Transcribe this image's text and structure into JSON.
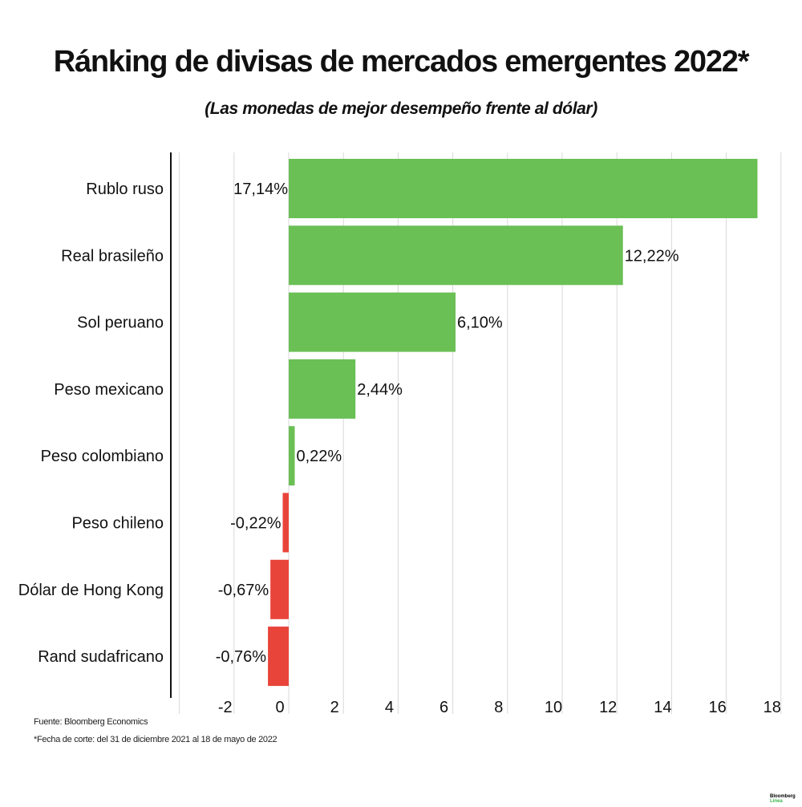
{
  "chart_data": {
    "type": "bar",
    "orientation": "horizontal",
    "title": "Ránking de divisas de mercados emergentes 2022*",
    "subtitle": "(Las monedas de mejor desempeño frente al dólar)",
    "categories": [
      "Rublo ruso",
      "Real brasileño",
      "Sol peruano",
      "Peso mexicano",
      "Peso colombiano",
      "Peso chileno",
      "Dólar de Hong Kong",
      "Rand sudafricano"
    ],
    "values": [
      17.14,
      12.22,
      6.1,
      2.44,
      0.22,
      -0.22,
      -0.67,
      -0.76
    ],
    "data_labels": [
      "17,14%",
      "12,22%",
      "6,10%",
      "2,44%",
      "0,22%",
      "-0,22%",
      "-0,67%",
      "-0,76%"
    ],
    "xlim": [
      -4,
      18.5
    ],
    "x_ticks": [
      -2,
      0,
      2,
      4,
      6,
      8,
      10,
      12,
      14,
      16,
      18
    ],
    "grid": true,
    "colors": {
      "positive": "#6abf55",
      "negative": "#e8443a"
    }
  },
  "footer": {
    "source": "Fuente: Bloomberg Economics",
    "note": "*Fecha de corte: del 31 de diciembre 2021 al 18 de mayo de 2022"
  },
  "logo": {
    "line1": "Bloomberg",
    "line2": "Línea"
  }
}
